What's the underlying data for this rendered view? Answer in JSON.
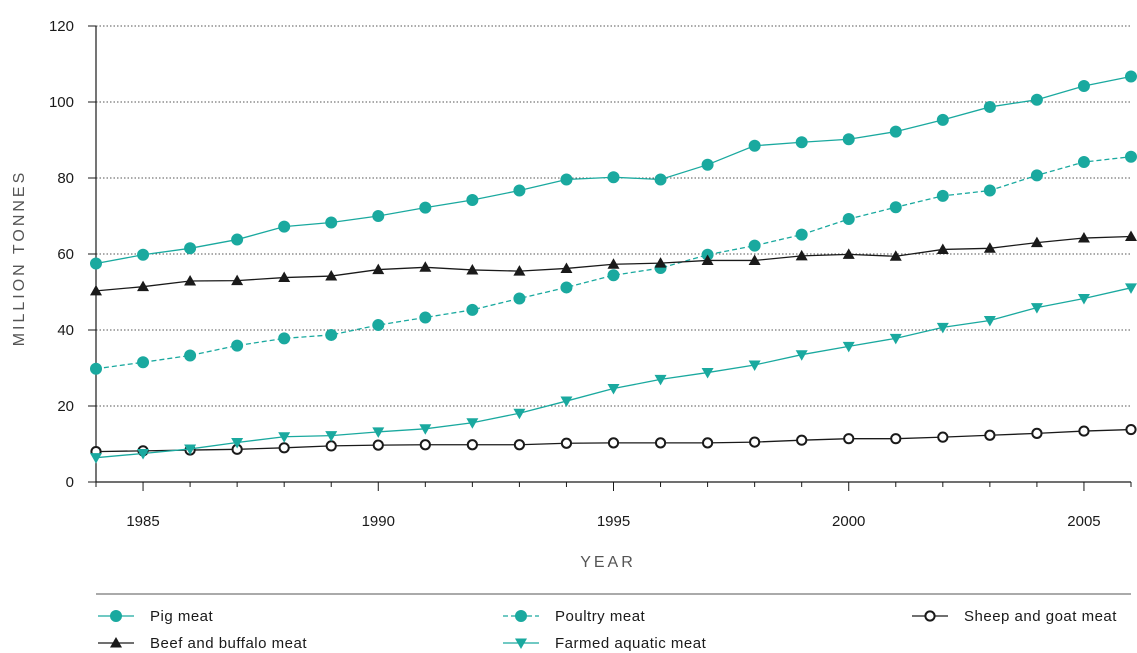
{
  "chart_data": {
    "type": "line",
    "xlabel": "YEAR",
    "ylabel": "MILLION TONNES",
    "xlim": [
      1984,
      2006
    ],
    "ylim": [
      0,
      120
    ],
    "x_ticks": [
      1985,
      1990,
      1995,
      2000,
      2005
    ],
    "y_ticks": [
      0,
      20,
      40,
      60,
      80,
      100,
      120
    ],
    "grid": "horizontal dotted",
    "legend_position": "bottom",
    "x": [
      1984,
      1985,
      1986,
      1987,
      1988,
      1989,
      1990,
      1991,
      1992,
      1993,
      1994,
      1995,
      1996,
      1997,
      1998,
      1999,
      2000,
      2001,
      2002,
      2003,
      2004,
      2005,
      2006
    ],
    "series": [
      {
        "name": "Pig meat",
        "color": "#1aa99f",
        "line": "solid",
        "marker": "filled-circle",
        "values": [
          57.5,
          59.8,
          61.5,
          63.8,
          67.2,
          68.3,
          70.0,
          72.2,
          74.2,
          76.7,
          79.6,
          80.2,
          79.6,
          83.5,
          88.5,
          89.4,
          90.2,
          92.2,
          95.3,
          98.7,
          100.6,
          104.2,
          106.7
        ]
      },
      {
        "name": "Poultry meat",
        "color": "#1aa99f",
        "line": "dashed",
        "marker": "filled-circle",
        "values": [
          29.8,
          31.5,
          33.3,
          35.9,
          37.8,
          38.7,
          41.3,
          43.3,
          45.3,
          48.3,
          51.2,
          54.4,
          56.3,
          59.8,
          62.2,
          65.1,
          69.2,
          72.3,
          75.3,
          76.7,
          80.7,
          84.2,
          85.6
        ]
      },
      {
        "name": "Sheep and goat meat",
        "color": "#1a1a1a",
        "line": "solid",
        "marker": "open-circle",
        "values": [
          8.0,
          8.2,
          8.4,
          8.6,
          9.0,
          9.5,
          9.7,
          9.8,
          9.8,
          9.8,
          10.2,
          10.3,
          10.3,
          10.3,
          10.5,
          11.0,
          11.4,
          11.4,
          11.8,
          12.3,
          12.8,
          13.4,
          13.8
        ]
      },
      {
        "name": "Beef and buffalo meat",
        "color": "#1a1a1a",
        "line": "solid",
        "marker": "filled-triangle-up",
        "values": [
          50.3,
          51.4,
          52.9,
          53.0,
          53.8,
          54.2,
          55.9,
          56.5,
          55.8,
          55.5,
          56.2,
          57.3,
          57.6,
          58.3,
          58.3,
          59.5,
          59.9,
          59.4,
          61.2,
          61.5,
          63.0,
          64.2,
          64.6
        ]
      },
      {
        "name": "Farmed aquatic meat",
        "color": "#1aa99f",
        "line": "solid",
        "marker": "filled-triangle-down",
        "values": [
          6.4,
          7.5,
          8.7,
          10.4,
          11.9,
          12.2,
          13.2,
          14.0,
          15.6,
          18.1,
          21.3,
          24.6,
          27.0,
          28.8,
          30.8,
          33.5,
          35.7,
          37.8,
          40.7,
          42.5,
          45.9,
          48.3,
          51.1
        ]
      }
    ]
  }
}
